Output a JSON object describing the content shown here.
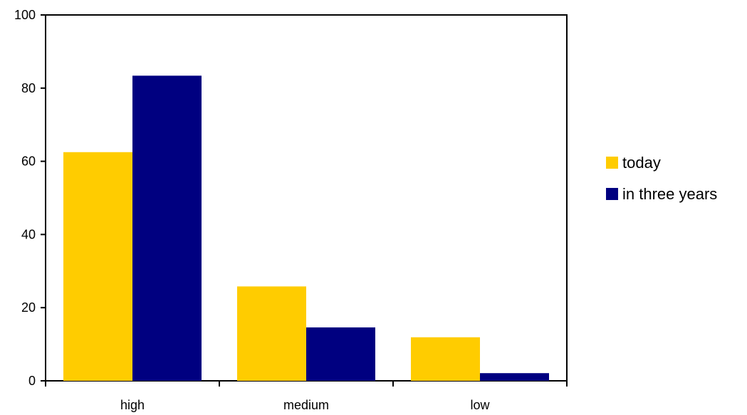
{
  "chart_data": {
    "type": "bar",
    "title": "",
    "xlabel": "",
    "ylabel": "",
    "categories": [
      "high",
      "medium",
      "low"
    ],
    "series": [
      {
        "name": "today",
        "values": [
          62.5,
          25.8,
          11.9
        ],
        "color": "#FFCC00"
      },
      {
        "name": "in three years",
        "values": [
          83.4,
          14.6,
          2.1
        ],
        "color": "#000080"
      }
    ],
    "ylim": [
      0,
      100
    ],
    "yticks": [
      "0",
      "20",
      "40",
      "60",
      "80",
      "100"
    ],
    "grid": false,
    "legend_position": "right"
  }
}
